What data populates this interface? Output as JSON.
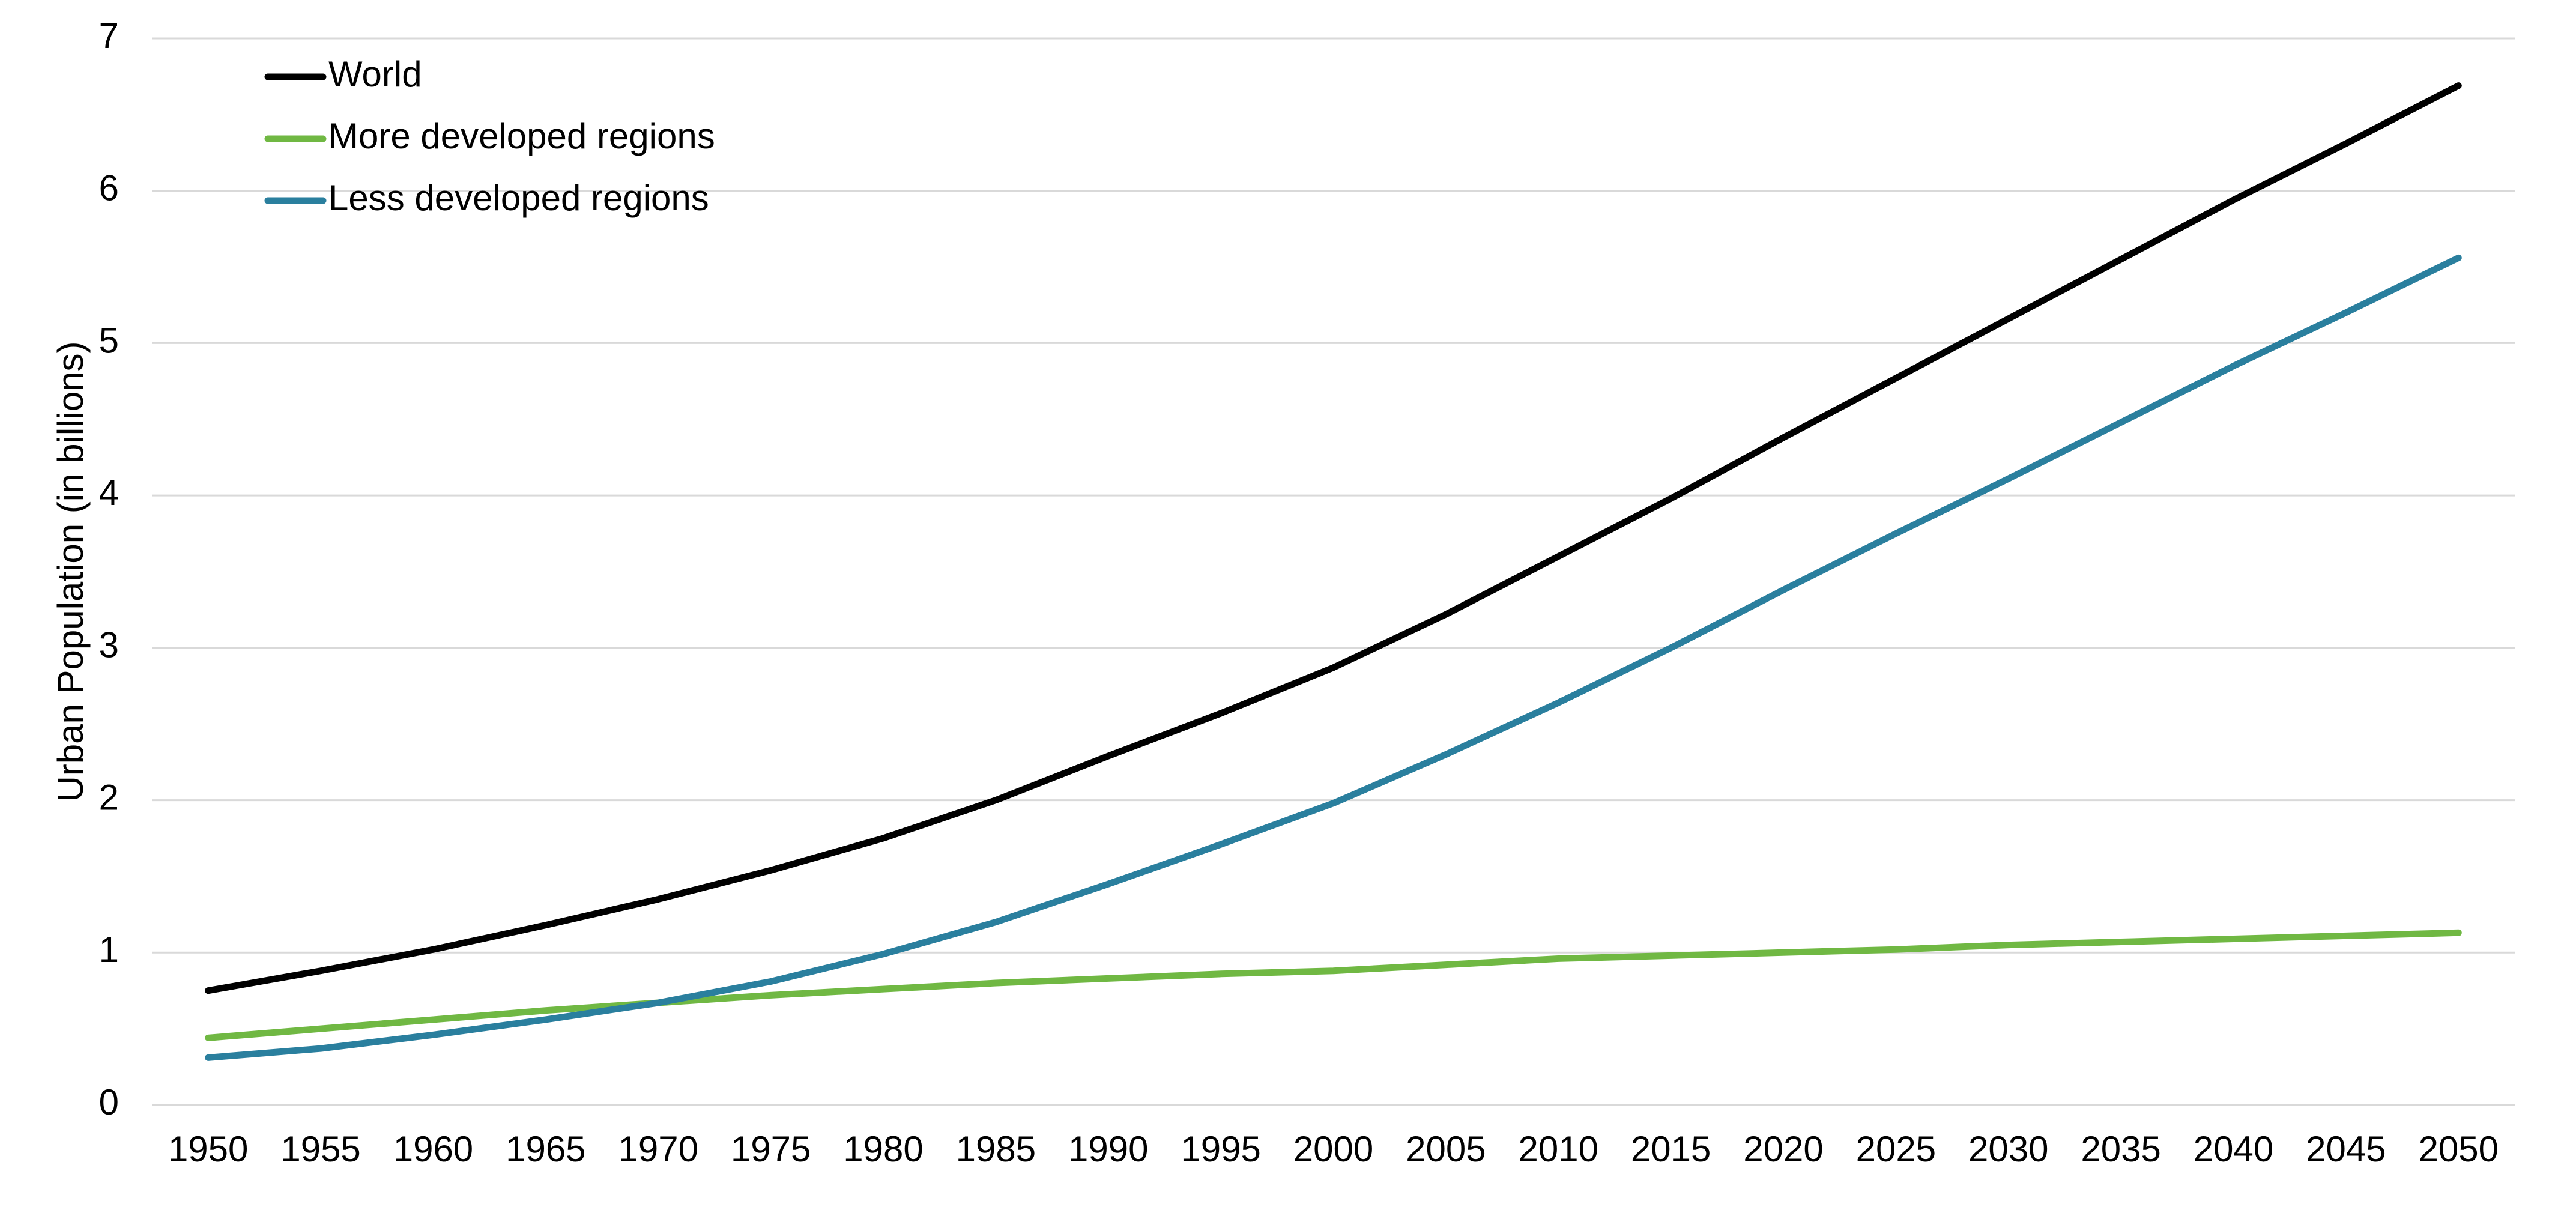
{
  "chart_data": {
    "type": "line",
    "y_label": "Urban Population (in billions)",
    "categories": [
      "1950",
      "1955",
      "1960",
      "1965",
      "1970",
      "1975",
      "1980",
      "1985",
      "1990",
      "1995",
      "2000",
      "2005",
      "2010",
      "2015",
      "2020",
      "2025",
      "2030",
      "2035",
      "2040",
      "2045",
      "2050"
    ],
    "series": [
      {
        "name": "World",
        "color": "#000000",
        "values": [
          0.75,
          0.88,
          1.02,
          1.18,
          1.35,
          1.54,
          1.75,
          2.0,
          2.29,
          2.57,
          2.87,
          3.22,
          3.6,
          3.98,
          4.38,
          4.77,
          5.16,
          5.55,
          5.94,
          6.31,
          6.69
        ]
      },
      {
        "name": "More developed regions",
        "color": "#70b843",
        "values": [
          0.44,
          0.5,
          0.56,
          0.62,
          0.67,
          0.72,
          0.76,
          0.8,
          0.83,
          0.86,
          0.88,
          0.92,
          0.96,
          0.98,
          1.0,
          1.02,
          1.05,
          1.07,
          1.09,
          1.11,
          1.13
        ]
      },
      {
        "name": "Less developed regions",
        "color": "#2a7f9e",
        "values": [
          0.31,
          0.37,
          0.46,
          0.56,
          0.67,
          0.81,
          0.99,
          1.2,
          1.45,
          1.71,
          1.98,
          2.3,
          2.64,
          3.0,
          3.38,
          3.75,
          4.11,
          4.48,
          4.85,
          5.2,
          5.56
        ]
      }
    ],
    "ylim": [
      0,
      7
    ],
    "yticks": [
      0,
      1,
      2,
      3,
      4,
      5,
      6,
      7
    ],
    "grid": true,
    "legend": "top-left"
  }
}
